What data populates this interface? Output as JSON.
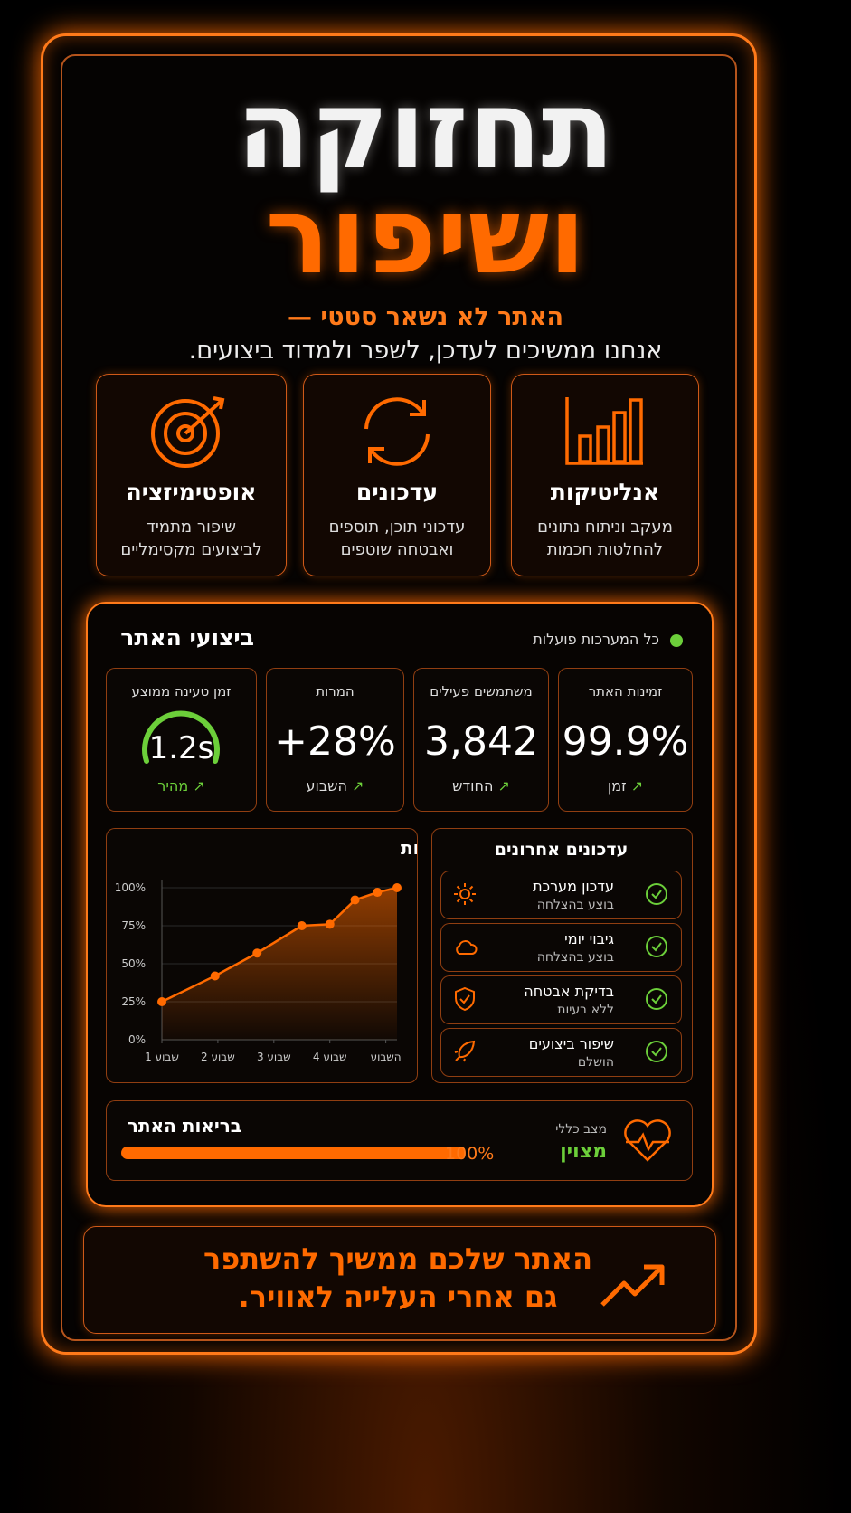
{
  "header": {
    "title_line1": "תחזוקה",
    "title_line2": "ושיפור",
    "subtitle_line1": "האתר לא נשאר סטטי —",
    "subtitle_line2": "אנחנו ממשיכים לעדכן, לשפר ולמדוד ביצועים."
  },
  "features": [
    {
      "title": "אנליטיקות",
      "line1": "מעקב וניתוח נתונים",
      "line2": "להחלטות חכמות"
    },
    {
      "title": "עדכונים",
      "line1": "עדכוני תוכן, תוספים",
      "line2": "ואבטחה שוטפים"
    },
    {
      "title": "אופטימיזציה",
      "line1": "שיפור מתמיד",
      "line2": "לביצועים מקסימליים"
    }
  ],
  "dashboard": {
    "title": "ביצועי האתר",
    "status": "כל המערכות פועלות",
    "metrics": [
      {
        "label": "זמינות האתר",
        "value": "99.9%",
        "note": "זמן"
      },
      {
        "label": "משתמשים פעילים",
        "value": "3,842",
        "note": "החודש"
      },
      {
        "label": "המרות",
        "value": "+28%",
        "note": "השבוע"
      },
      {
        "label": "זמן טעינה ממוצע",
        "value": "1.2s",
        "note": "מהיר"
      }
    ],
    "updates_title": "עדכונים אחרונים",
    "updates": [
      {
        "title": "עדכון מערכת",
        "status": "בוצע בהצלחה"
      },
      {
        "title": "גיבוי יומי",
        "status": "בוצע בהצלחה"
      },
      {
        "title": "בדיקת אבטחה",
        "status": "ללא בעיות"
      },
      {
        "title": "שיפור ביצועים",
        "status": "הושלם"
      }
    ],
    "health": {
      "title": "בריאות האתר",
      "value": 100,
      "value_label": "100%",
      "status_label": "מצב כללי",
      "status": "מצוין"
    }
  },
  "chart_data": {
    "type": "line",
    "title": "שיפור מהירות",
    "color": "#ff6a00",
    "grid": true,
    "x": [
      1,
      1.95,
      2.7,
      3.5,
      4,
      4.45,
      4.85,
      5.2
    ],
    "values": [
      25,
      42,
      57,
      75,
      76,
      92,
      97,
      100
    ],
    "xlim": [
      1,
      5.2
    ],
    "xticks": [
      {
        "value": 1,
        "label": "שבוע 1"
      },
      {
        "value": 2,
        "label": "שבוע 2"
      },
      {
        "value": 3,
        "label": "שבוע 3"
      },
      {
        "value": 4,
        "label": "שבוע 4"
      },
      {
        "value": 5,
        "label": "השבוע"
      }
    ],
    "ylim": [
      0,
      100
    ],
    "yticks": [
      {
        "value": 0,
        "label": "0%"
      },
      {
        "value": 25,
        "label": "25%"
      },
      {
        "value": 50,
        "label": "50%"
      },
      {
        "value": 75,
        "label": "75%"
      },
      {
        "value": 100,
        "label": "100%"
      }
    ]
  },
  "cta": {
    "line1": "האתר שלכם ממשיך להשתפר",
    "line2": "גם אחרי העלייה לאוויר."
  }
}
